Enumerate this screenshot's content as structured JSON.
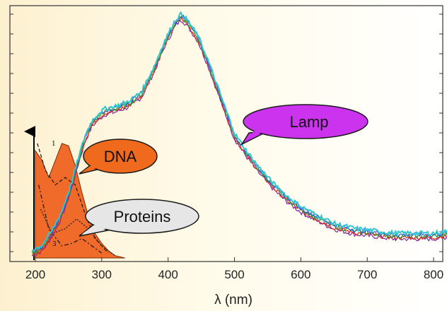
{
  "chart_data": {
    "type": "line",
    "title": "",
    "xlabel": "λ (nm)",
    "ylabel": "",
    "xlim": [
      165,
      832
    ],
    "xticks": [
      200,
      300,
      400,
      500,
      600,
      700,
      800
    ],
    "grid": false,
    "series": [
      {
        "name": "Lamp",
        "color": "#33c6cc",
        "x": [
          195,
          210,
          225,
          240,
          255,
          265,
          275,
          285,
          295,
          305,
          320,
          340,
          360,
          380,
          395,
          410,
          420,
          430,
          445,
          460,
          480,
          500,
          520,
          540,
          560,
          580,
          600,
          620,
          650,
          680,
          710,
          740,
          770,
          800,
          830
        ],
        "y": [
          0.02,
          0.04,
          0.1,
          0.18,
          0.3,
          0.4,
          0.49,
          0.55,
          0.58,
          0.6,
          0.61,
          0.63,
          0.67,
          0.78,
          0.88,
          0.96,
          0.99,
          0.96,
          0.9,
          0.8,
          0.65,
          0.5,
          0.42,
          0.35,
          0.29,
          0.24,
          0.2,
          0.17,
          0.13,
          0.11,
          0.1,
          0.09,
          0.09,
          0.09,
          0.1
        ]
      },
      {
        "name": "DNA",
        "color": "#f06a2a",
        "x": [
          200,
          210,
          220,
          230,
          240,
          250,
          260,
          270,
          280,
          290,
          300,
          310,
          320,
          335
        ],
        "y": [
          0.44,
          0.4,
          0.33,
          0.4,
          0.47,
          0.46,
          0.38,
          0.27,
          0.17,
          0.1,
          0.06,
          0.03,
          0.01,
          0.0
        ]
      }
    ],
    "annotations": [
      {
        "text": "Lamp",
        "fill": "#cc33ee"
      },
      {
        "text": "DNA",
        "fill": "#f06a1e"
      },
      {
        "text": "Proteins",
        "fill": "#e6e6e6"
      }
    ],
    "curve_labels": [
      "1",
      "3"
    ]
  }
}
